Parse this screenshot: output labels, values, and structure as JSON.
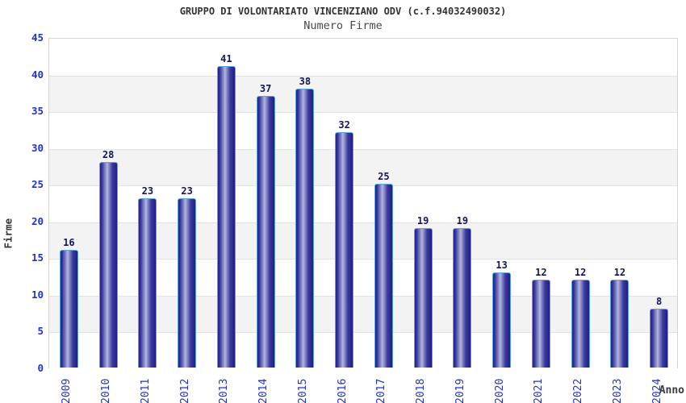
{
  "header": {
    "title": "GRUPPO DI VOLONTARIATO VINCENZIANO ODV (c.f.94032490032)",
    "subtitle": "Numero Firme"
  },
  "chart_data": {
    "type": "bar",
    "title": "GRUPPO DI VOLONTARIATO VINCENZIANO ODV (c.f.94032490032)",
    "subtitle": "Numero Firme",
    "categories": [
      "2009",
      "2010",
      "2011",
      "2012",
      "2013",
      "2014",
      "2015",
      "2016",
      "2017",
      "2018",
      "2019",
      "2020",
      "2021",
      "2022",
      "2023",
      "2024"
    ],
    "values": [
      16,
      28,
      23,
      23,
      41,
      37,
      38,
      32,
      25,
      19,
      19,
      13,
      12,
      12,
      12,
      8
    ],
    "xlabel": "Anno",
    "ylabel": "Firme",
    "ylim": [
      0,
      45
    ],
    "ytick_step": 5,
    "yticks": [
      0,
      5,
      10,
      15,
      20,
      25,
      30,
      35,
      40,
      45
    ],
    "grid": true,
    "legend_position": "none",
    "bar_labels_shown": true,
    "colors": {
      "bar_dark": "#1e1e87",
      "bar_mid": "#3a3a9e",
      "bar_light": "#b2b6de",
      "bar_border": "#5ba2e0",
      "value_label": "#14145e",
      "axis_tick": "#2233cc",
      "band_gray": "#f3f3f3",
      "band_white": "#ffffff",
      "gridline": "#e2e2e2",
      "plot_border": "#d4d4d4",
      "title_text": "#333333",
      "subtitle_text": "#474747"
    }
  }
}
